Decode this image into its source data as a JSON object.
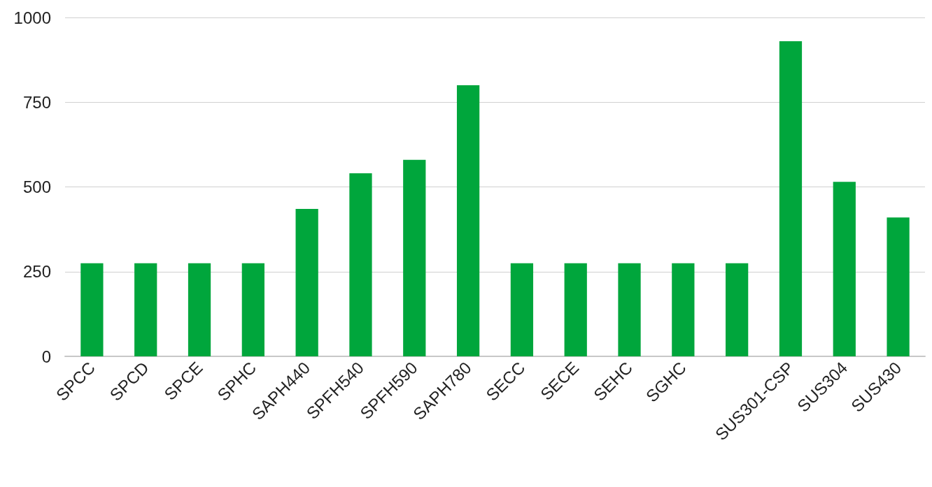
{
  "chart_data": {
    "type": "bar",
    "categories": [
      "SPCC",
      "SPCD",
      "SPCE",
      "SPHC",
      "SAPH440",
      "SPFH540",
      "SPFH590",
      "SAPH780",
      "SECC",
      "SECE",
      "SEHC",
      "SGHC",
      null,
      "SUS301-CSP",
      "SUS304",
      "SUS430"
    ],
    "values": [
      275,
      275,
      275,
      275,
      435,
      540,
      580,
      800,
      275,
      275,
      275,
      275,
      275,
      930,
      515,
      410
    ],
    "color": "#00a63c",
    "ylim": [
      0,
      1000
    ],
    "yticks": [
      0,
      250,
      500,
      750,
      1000
    ],
    "grid": "y"
  }
}
